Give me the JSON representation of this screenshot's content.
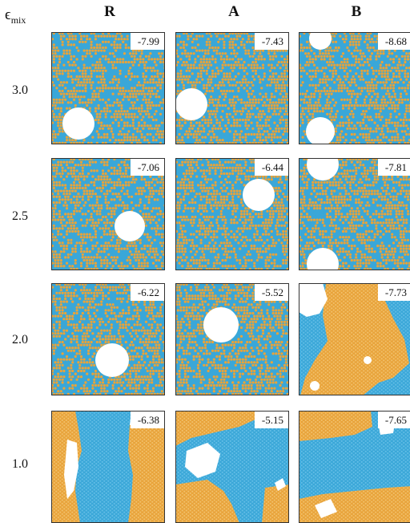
{
  "header": {
    "param_symbol": "ϵ",
    "param_sub": "mix",
    "columns": [
      "R",
      "A",
      "B"
    ]
  },
  "rows": [
    {
      "label": "3.0",
      "energies": [
        "-7.99",
        "-7.43",
        "-8.68"
      ]
    },
    {
      "label": "2.5",
      "energies": [
        "-7.06",
        "-6.44",
        "-7.81"
      ]
    },
    {
      "label": "2.0",
      "energies": [
        "-6.22",
        "-5.52",
        "-7.73"
      ]
    },
    {
      "label": "1.0",
      "energies": [
        "-6.38",
        "-5.15",
        "-7.65"
      ]
    }
  ],
  "colors": {
    "species_a": "#e8a33a",
    "species_b": "#3aa7d8",
    "void": "#ffffff"
  }
}
